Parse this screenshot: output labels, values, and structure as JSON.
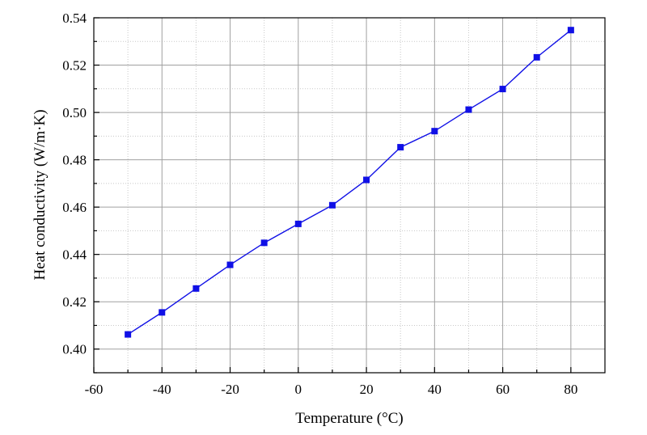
{
  "chart_data": {
    "type": "line",
    "title": "",
    "xlabel": "Temperature  (°C)",
    "ylabel": "Heat conductivity (W/m·K)",
    "xlim": [
      -60,
      90
    ],
    "ylim": [
      0.39,
      0.54
    ],
    "x_ticks": [
      -60,
      -40,
      -20,
      0,
      20,
      40,
      60,
      80
    ],
    "x_tick_labels": [
      "-60",
      "-40",
      "-20",
      "0",
      "20",
      "40",
      "60",
      "80"
    ],
    "y_ticks": [
      0.4,
      0.42,
      0.44,
      0.46,
      0.48,
      0.5,
      0.52,
      0.54
    ],
    "y_tick_labels": [
      "0.40",
      "0.42",
      "0.44",
      "0.46",
      "0.48",
      "0.50",
      "0.52",
      "0.54"
    ],
    "grid": true,
    "series": [
      {
        "color": "#1010e6",
        "marker": "square",
        "x": [
          -50,
          -40,
          -30,
          -20,
          -10,
          0,
          10,
          20,
          30,
          40,
          50,
          60,
          70,
          80
        ],
        "y": [
          0.4062,
          0.4155,
          0.4256,
          0.4356,
          0.4449,
          0.4529,
          0.4608,
          0.4715,
          0.4853,
          0.4921,
          0.5012,
          0.5099,
          0.5233,
          0.5348
        ]
      }
    ]
  }
}
